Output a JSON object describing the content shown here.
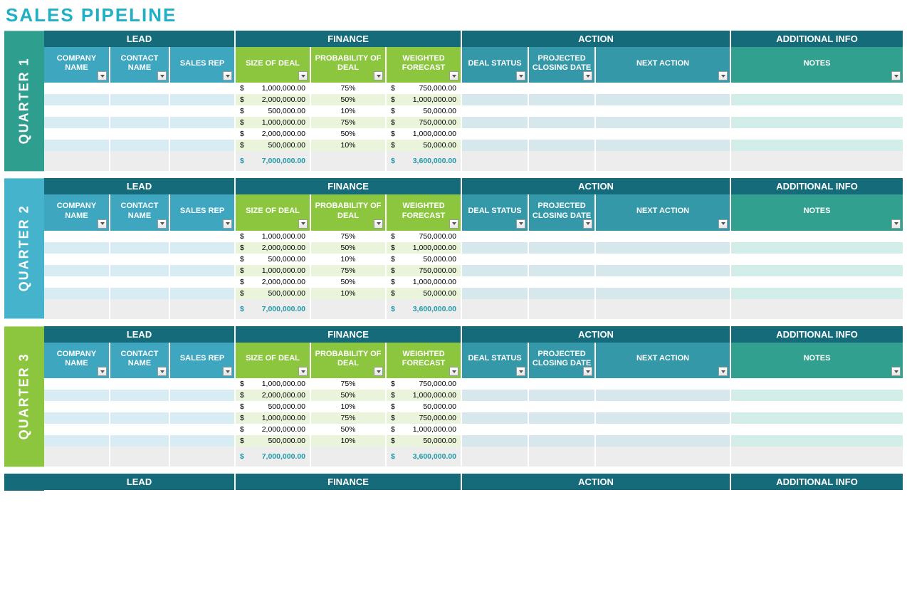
{
  "title": "SALES PIPELINE",
  "title_color": "#1fb0c4",
  "colors": {
    "section_bg": "#166b7a",
    "lead_col_bg": "#3ea6bf",
    "fin_col_bg": "#8cc63f",
    "action_col_bg": "#3498a8",
    "notes_col_bg": "#32a08e",
    "row_even_lead": "#ffffff",
    "row_odd_lead": "#d8ecf4",
    "row_even_fin": "#ffffff",
    "row_odd_fin": "#eaf4da",
    "row_even_action": "#ffffff",
    "row_odd_action": "#d6e8ec",
    "row_even_notes": "#ffffff",
    "row_odd_notes": "#d3ede8",
    "totals_bg": "#ededed",
    "totals_text": "#1f99a9"
  },
  "section_labels": {
    "lead": "LEAD",
    "finance": "FINANCE",
    "action": "ACTION",
    "additional": "ADDITIONAL INFO"
  },
  "column_labels": {
    "company": "COMPANY NAME",
    "contact": "CONTACT NAME",
    "rep": "SALES REP",
    "size": "SIZE OF DEAL",
    "prob": "PROBABILITY OF DEAL",
    "forecast": "WEIGHTED FORECAST",
    "status": "DEAL STATUS",
    "date": "PROJECTED CLOSING DATE",
    "next": "NEXT ACTION",
    "notes": "NOTES"
  },
  "quarters": [
    {
      "label": "QUARTER 1",
      "tab_color": "#2e9e8f",
      "rows": [
        {
          "size": "1,000,000.00",
          "prob": "75%",
          "forecast": "750,000.00"
        },
        {
          "size": "2,000,000.00",
          "prob": "50%",
          "forecast": "1,000,000.00"
        },
        {
          "size": "500,000.00",
          "prob": "10%",
          "forecast": "50,000.00"
        },
        {
          "size": "1,000,000.00",
          "prob": "75%",
          "forecast": "750,000.00"
        },
        {
          "size": "2,000,000.00",
          "prob": "50%",
          "forecast": "1,000,000.00"
        },
        {
          "size": "500,000.00",
          "prob": "10%",
          "forecast": "50,000.00"
        }
      ],
      "total_size": "7,000,000.00",
      "total_forecast": "3,600,000.00"
    },
    {
      "label": "QUARTER 2",
      "tab_color": "#45b3cc",
      "rows": [
        {
          "size": "1,000,000.00",
          "prob": "75%",
          "forecast": "750,000.00"
        },
        {
          "size": "2,000,000.00",
          "prob": "50%",
          "forecast": "1,000,000.00"
        },
        {
          "size": "500,000.00",
          "prob": "10%",
          "forecast": "50,000.00"
        },
        {
          "size": "1,000,000.00",
          "prob": "75%",
          "forecast": "750,000.00"
        },
        {
          "size": "2,000,000.00",
          "prob": "50%",
          "forecast": "1,000,000.00"
        },
        {
          "size": "500,000.00",
          "prob": "10%",
          "forecast": "50,000.00"
        }
      ],
      "total_size": "7,000,000.00",
      "total_forecast": "3,600,000.00"
    },
    {
      "label": "QUARTER 3",
      "tab_color": "#8cc63f",
      "rows": [
        {
          "size": "1,000,000.00",
          "prob": "75%",
          "forecast": "750,000.00"
        },
        {
          "size": "2,000,000.00",
          "prob": "50%",
          "forecast": "1,000,000.00"
        },
        {
          "size": "500,000.00",
          "prob": "10%",
          "forecast": "50,000.00"
        },
        {
          "size": "1,000,000.00",
          "prob": "75%",
          "forecast": "750,000.00"
        },
        {
          "size": "2,000,000.00",
          "prob": "50%",
          "forecast": "1,000,000.00"
        },
        {
          "size": "500,000.00",
          "prob": "10%",
          "forecast": "50,000.00"
        }
      ],
      "total_size": "7,000,000.00",
      "total_forecast": "3,600,000.00"
    }
  ],
  "partial_quarter": {
    "section_labels_only": true
  },
  "currency_symbol": "$"
}
